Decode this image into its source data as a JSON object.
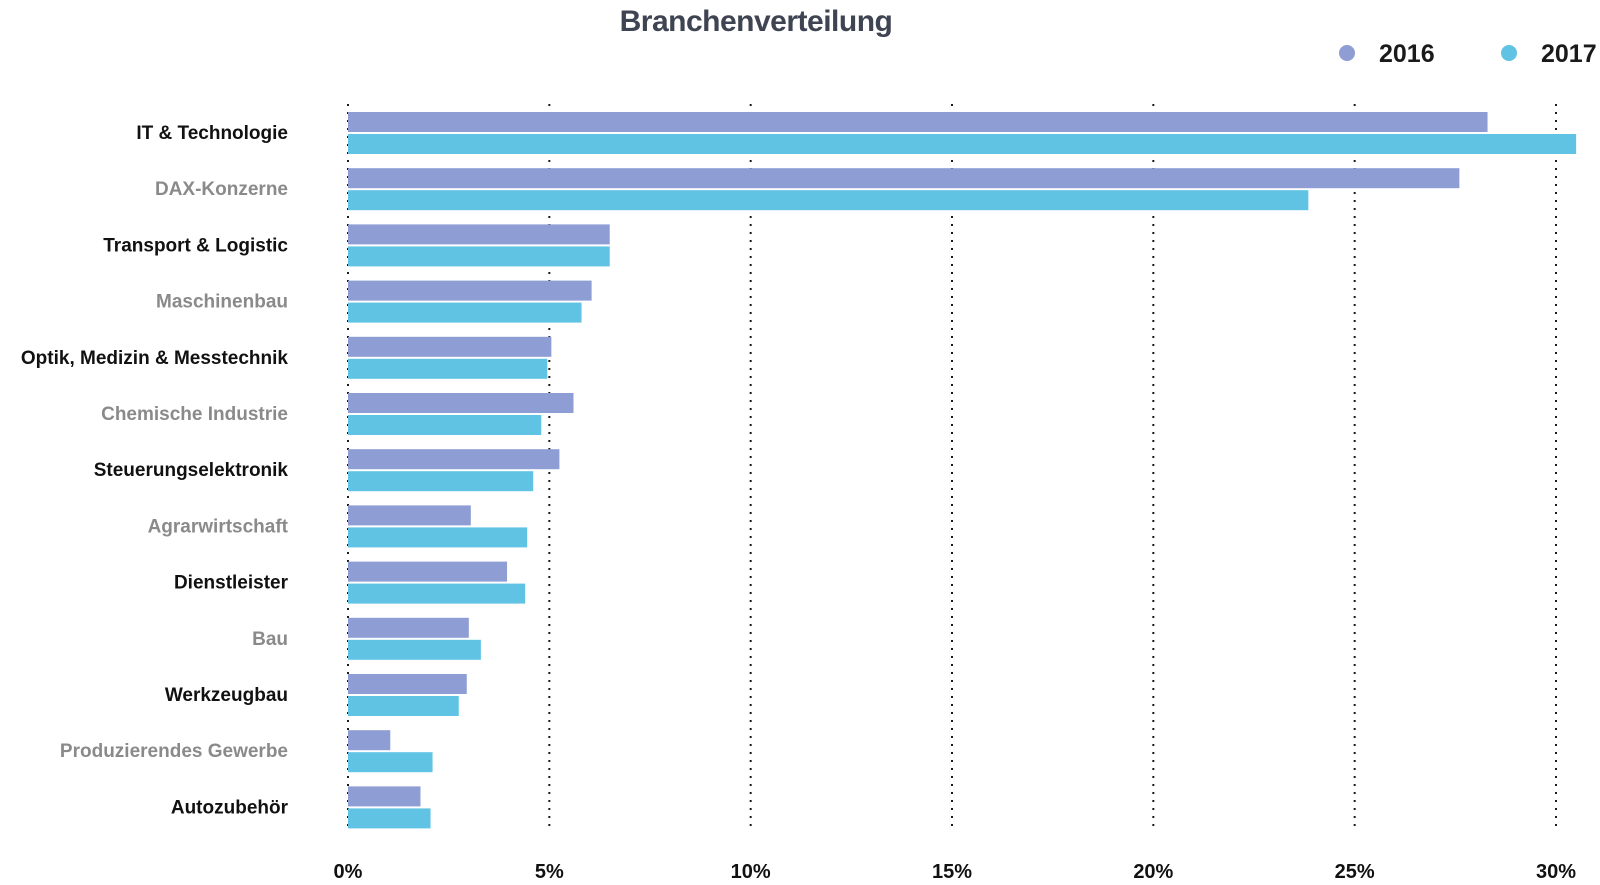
{
  "chart_data": {
    "type": "bar",
    "orientation": "horizontal",
    "title": "Branchenverteilung",
    "xlabel": "",
    "ylabel": "",
    "xlim": [
      0,
      30
    ],
    "x_ticks": [
      "0%",
      "5%",
      "10%",
      "15%",
      "20%",
      "25%",
      "30%"
    ],
    "x_tick_values": [
      0,
      5,
      10,
      15,
      20,
      25,
      30
    ],
    "grid": "vertical dotted",
    "legend_position": "top-right",
    "categories": [
      "IT & Technologie",
      "DAX-Konzerne",
      "Transport & Logistic",
      "Maschinenbau",
      "Optik, Medizin & Messtechnik",
      "Chemische Industrie",
      "Steuerungselektronik",
      "Agrarwirtschaft",
      "Dienstleister",
      "Bau",
      "Werkzeugbau",
      "Produzierendes Gewerbe",
      "Autozubehör"
    ],
    "category_colors": [
      "#111111",
      "#8a8a8a"
    ],
    "series": [
      {
        "name": "2016",
        "color": "#8e9dd3",
        "values": [
          28.3,
          27.6,
          6.5,
          6.05,
          5.05,
          5.6,
          5.25,
          3.05,
          3.95,
          3.0,
          2.95,
          1.05,
          1.8
        ]
      },
      {
        "name": "2017",
        "color": "#60c3e3",
        "values": [
          30.5,
          23.85,
          6.5,
          5.8,
          4.95,
          4.8,
          4.6,
          4.45,
          4.4,
          3.3,
          2.75,
          2.1,
          2.05
        ]
      }
    ]
  }
}
